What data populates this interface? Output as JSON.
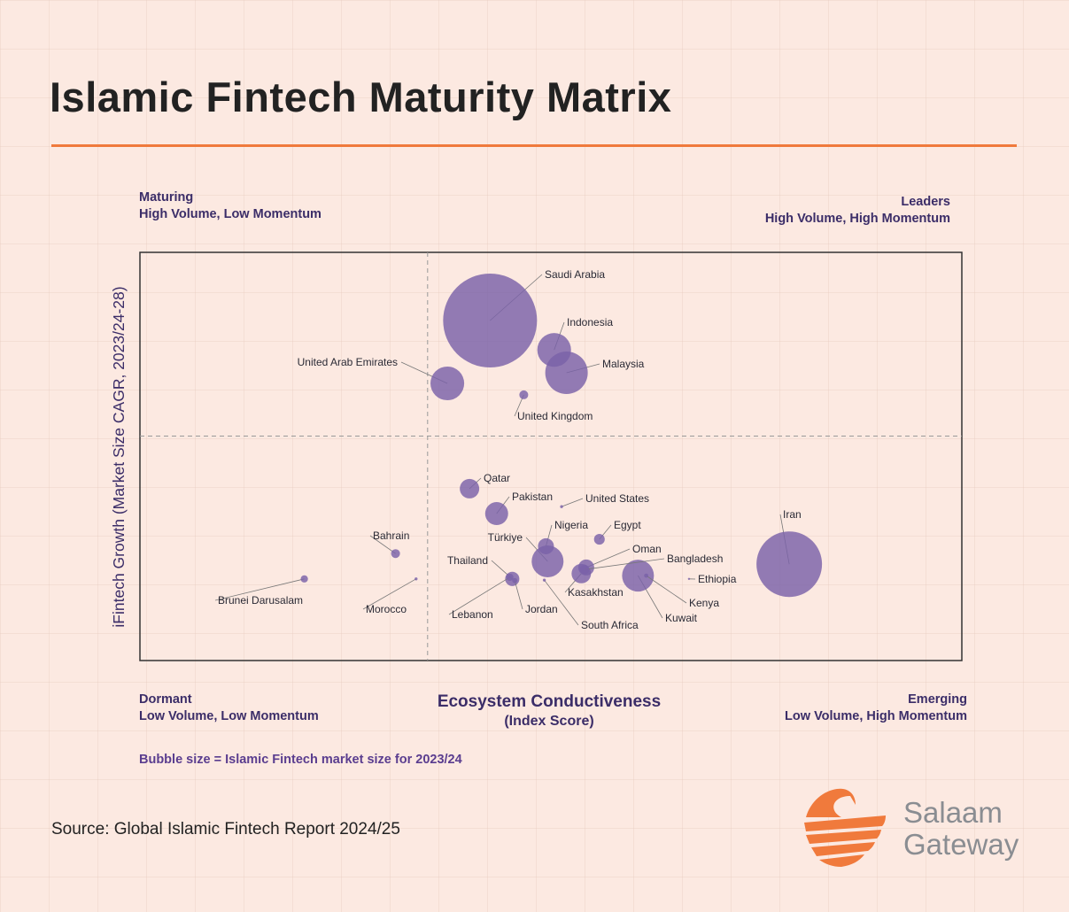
{
  "title": "Islamic Fintech Maturity Matrix",
  "quadrants": {
    "top_left": {
      "name": "Maturing",
      "desc": "High Volume, Low Momentum"
    },
    "top_right": {
      "name": "Leaders",
      "desc": "High Volume, High Momentum"
    },
    "bottom_left": {
      "name": "Dormant",
      "desc": "Low Volume, Low Momentum"
    },
    "bottom_right": {
      "name": "Emerging",
      "desc": "Low Volume, High Momentum"
    }
  },
  "note": "Bubble size = Islamic Fintech market size for 2023/24",
  "source": "Source: Global Islamic Fintech Report 2024/25",
  "brand": {
    "line1": "Salaam",
    "line2": "Gateway"
  },
  "colors": {
    "bubble": "#7a62a8",
    "accent": "#f07a3c",
    "quadrant_text": "#3b2d68",
    "background": "#fce9e1"
  },
  "chart_data": {
    "type": "scatter",
    "subtype": "bubble",
    "title": "Islamic Fintech Maturity Matrix",
    "xlabel": "Ecosystem Conductiveness",
    "xlabel_sub": "(Index Score)",
    "ylabel": "iFintech Growth (Market Size CAGR, 2023/24-28)",
    "xlim": [
      0,
      100
    ],
    "ylim": [
      0,
      100
    ],
    "x_divider": 35,
    "y_divider": 55,
    "grid": false,
    "axis_ticks": false,
    "size_meaning": "Islamic Fintech market size for 2023/24 (relative)",
    "points": [
      {
        "name": "Saudi Arabia",
        "x": 42.6,
        "y": 83.3,
        "size": 100
      },
      {
        "name": "Indonesia",
        "x": 50.4,
        "y": 76.1,
        "size": 12.9
      },
      {
        "name": "Malaysia",
        "x": 51.9,
        "y": 70.5,
        "size": 20.5
      },
      {
        "name": "United Arab Emirates",
        "x": 37.4,
        "y": 67.9,
        "size": 12.9
      },
      {
        "name": "United Kingdom",
        "x": 46.7,
        "y": 65.1,
        "size": 0.9
      },
      {
        "name": "Qatar",
        "x": 40.1,
        "y": 42.1,
        "size": 4.3
      },
      {
        "name": "Pakistan",
        "x": 43.4,
        "y": 36.0,
        "size": 6.0
      },
      {
        "name": "United States",
        "x": 51.3,
        "y": 37.7,
        "size": 0.1
      },
      {
        "name": "Nigeria",
        "x": 49.4,
        "y": 28.0,
        "size": 2.9
      },
      {
        "name": "Egypt",
        "x": 55.9,
        "y": 29.7,
        "size": 1.3
      },
      {
        "name": "Türkiye",
        "x": 49.6,
        "y": 24.3,
        "size": 11.5
      },
      {
        "name": "Oman",
        "x": 54.3,
        "y": 22.8,
        "size": 2.9
      },
      {
        "name": "Bangladesh",
        "x": 54.1,
        "y": 22.3,
        "size": 1.0
      },
      {
        "name": "Thailand",
        "x": 45.3,
        "y": 20.0,
        "size": 2.3
      },
      {
        "name": "Ethiopia",
        "x": 66.8,
        "y": 20.0,
        "size": 0.05
      },
      {
        "name": "Kasakhstan",
        "x": 53.7,
        "y": 21.3,
        "size": 4.3
      },
      {
        "name": "Kenya",
        "x": 61.6,
        "y": 20.8,
        "size": 0.2
      },
      {
        "name": "Lebanon",
        "x": 45.0,
        "y": 20.4,
        "size": 0.6
      },
      {
        "name": "Jordan",
        "x": 45.6,
        "y": 19.6,
        "size": 0.3
      },
      {
        "name": "Kuwait",
        "x": 60.6,
        "y": 20.8,
        "size": 11.5
      },
      {
        "name": "South Africa",
        "x": 49.2,
        "y": 19.7,
        "size": 0.1
      },
      {
        "name": "Iran",
        "x": 79.0,
        "y": 23.6,
        "size": 48.7
      },
      {
        "name": "Bahrain",
        "x": 31.1,
        "y": 26.2,
        "size": 0.9
      },
      {
        "name": "Brunei Darusalam",
        "x": 20.0,
        "y": 20.0,
        "size": 0.6
      },
      {
        "name": "Morocco",
        "x": 33.6,
        "y": 20.0,
        "size": 0.1
      }
    ]
  }
}
